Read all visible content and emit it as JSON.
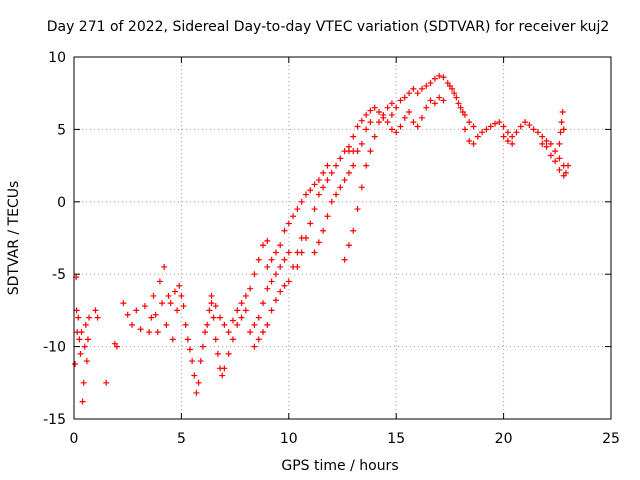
{
  "chart_data": {
    "type": "scatter",
    "title": "Day 271 of 2022, Sidereal Day-to-day VTEC variation (SDTVAR) for receiver kuj2",
    "xlabel": "GPS time / hours",
    "ylabel": "SDTVAR / TECUs",
    "xlim": [
      0,
      25
    ],
    "ylim": [
      -15,
      10
    ],
    "xticks": [
      "0",
      "5",
      "10",
      "15",
      "20",
      "25"
    ],
    "yticks": [
      "-15",
      "-10",
      "-5",
      "0",
      "5",
      "10"
    ],
    "grid": true,
    "marker": "plus",
    "series": [
      {
        "name": "SDTVAR",
        "color": "#ff0000",
        "points": [
          [
            0.05,
            -11.2
          ],
          [
            0.1,
            -5.2
          ],
          [
            0.12,
            -7.5
          ],
          [
            0.15,
            -9.0
          ],
          [
            0.2,
            -8.0
          ],
          [
            0.25,
            -9.5
          ],
          [
            0.3,
            -10.5
          ],
          [
            0.35,
            -9.0
          ],
          [
            0.4,
            -13.8
          ],
          [
            0.45,
            -12.5
          ],
          [
            0.5,
            -10.0
          ],
          [
            0.55,
            -8.5
          ],
          [
            0.6,
            -11.0
          ],
          [
            0.65,
            -9.5
          ],
          [
            0.7,
            -8.0
          ],
          [
            1.0,
            -7.5
          ],
          [
            1.1,
            -8.0
          ],
          [
            1.5,
            -12.5
          ],
          [
            1.9,
            -9.8
          ],
          [
            2.0,
            -10.0
          ],
          [
            2.3,
            -7.0
          ],
          [
            2.5,
            -7.8
          ],
          [
            2.7,
            -8.5
          ],
          [
            2.9,
            -7.5
          ],
          [
            3.1,
            -8.8
          ],
          [
            3.3,
            -7.2
          ],
          [
            3.5,
            -9.0
          ],
          [
            3.6,
            -8.0
          ],
          [
            3.7,
            -6.5
          ],
          [
            3.8,
            -7.8
          ],
          [
            3.9,
            -9.0
          ],
          [
            4.0,
            -5.5
          ],
          [
            4.1,
            -7.0
          ],
          [
            4.2,
            -4.5
          ],
          [
            4.3,
            -8.5
          ],
          [
            4.4,
            -6.5
          ],
          [
            4.5,
            -7.0
          ],
          [
            4.6,
            -9.5
          ],
          [
            4.7,
            -6.2
          ],
          [
            4.8,
            -7.5
          ],
          [
            4.9,
            -5.8
          ],
          [
            5.0,
            -6.5
          ],
          [
            5.1,
            -7.2
          ],
          [
            5.2,
            -8.5
          ],
          [
            5.3,
            -9.5
          ],
          [
            5.4,
            -10.2
          ],
          [
            5.5,
            -11.0
          ],
          [
            5.6,
            -12.0
          ],
          [
            5.7,
            -13.2
          ],
          [
            5.8,
            -12.5
          ],
          [
            5.9,
            -11.0
          ],
          [
            6.0,
            -10.0
          ],
          [
            6.1,
            -9.0
          ],
          [
            6.2,
            -8.5
          ],
          [
            6.3,
            -7.5
          ],
          [
            6.4,
            -7.0
          ],
          [
            6.5,
            -8.0
          ],
          [
            6.6,
            -9.5
          ],
          [
            6.7,
            -10.5
          ],
          [
            6.8,
            -11.5
          ],
          [
            6.9,
            -12.0
          ],
          [
            7.0,
            -11.5
          ],
          [
            7.2,
            -10.5
          ],
          [
            7.4,
            -9.5
          ],
          [
            7.6,
            -8.5
          ],
          [
            7.8,
            -8.0
          ],
          [
            6.4,
            -6.5
          ],
          [
            6.6,
            -7.2
          ],
          [
            6.8,
            -8.0
          ],
          [
            7.0,
            -8.5
          ],
          [
            7.2,
            -9.0
          ],
          [
            7.4,
            -8.2
          ],
          [
            7.6,
            -7.5
          ],
          [
            7.8,
            -7.0
          ],
          [
            8.0,
            -6.5
          ],
          [
            8.0,
            -7.5
          ],
          [
            8.2,
            -6.0
          ],
          [
            8.4,
            -5.0
          ],
          [
            8.6,
            -4.0
          ],
          [
            8.8,
            -3.0
          ],
          [
            9.0,
            -2.7
          ],
          [
            8.2,
            -9.0
          ],
          [
            8.4,
            -8.5
          ],
          [
            8.6,
            -8.0
          ],
          [
            8.8,
            -7.0
          ],
          [
            9.0,
            -6.0
          ],
          [
            9.2,
            -5.5
          ],
          [
            9.4,
            -5.0
          ],
          [
            9.6,
            -4.5
          ],
          [
            9.8,
            -4.0
          ],
          [
            10.0,
            -3.5
          ],
          [
            8.4,
            -10.0
          ],
          [
            8.6,
            -9.5
          ],
          [
            8.8,
            -9.0
          ],
          [
            9.0,
            -8.5
          ],
          [
            9.2,
            -7.5
          ],
          [
            9.4,
            -6.8
          ],
          [
            9.6,
            -6.2
          ],
          [
            9.8,
            -5.8
          ],
          [
            10.0,
            -5.5
          ],
          [
            10.2,
            -4.5
          ],
          [
            10.4,
            -3.5
          ],
          [
            10.6,
            -2.5
          ],
          [
            9.0,
            -4.5
          ],
          [
            9.2,
            -4.0
          ],
          [
            9.4,
            -3.5
          ],
          [
            9.6,
            -3.0
          ],
          [
            9.8,
            -2.0
          ],
          [
            10.0,
            -1.5
          ],
          [
            10.2,
            -1.0
          ],
          [
            10.4,
            -0.5
          ],
          [
            10.6,
            0.0
          ],
          [
            10.8,
            0.5
          ],
          [
            11.0,
            0.8
          ],
          [
            11.2,
            1.2
          ],
          [
            11.4,
            1.5
          ],
          [
            11.6,
            2.0
          ],
          [
            11.8,
            2.5
          ],
          [
            10.4,
            -4.5
          ],
          [
            10.6,
            -3.5
          ],
          [
            10.8,
            -2.5
          ],
          [
            11.0,
            -1.5
          ],
          [
            11.2,
            -0.5
          ],
          [
            11.4,
            0.5
          ],
          [
            11.6,
            1.0
          ],
          [
            11.8,
            1.5
          ],
          [
            12.0,
            2.0
          ],
          [
            12.2,
            2.5
          ],
          [
            12.4,
            3.0
          ],
          [
            12.6,
            3.5
          ],
          [
            12.8,
            3.8
          ],
          [
            13.0,
            3.5
          ],
          [
            11.2,
            -3.5
          ],
          [
            11.4,
            -2.8
          ],
          [
            11.6,
            -2.0
          ],
          [
            11.8,
            -1.0
          ],
          [
            12.0,
            0.0
          ],
          [
            12.2,
            0.5
          ],
          [
            12.4,
            1.0
          ],
          [
            12.6,
            1.5
          ],
          [
            12.8,
            2.0
          ],
          [
            13.0,
            2.5
          ],
          [
            13.2,
            3.5
          ],
          [
            13.4,
            4.0
          ],
          [
            13.6,
            5.0
          ],
          [
            13.8,
            5.5
          ],
          [
            12.6,
            -4.0
          ],
          [
            12.8,
            -3.0
          ],
          [
            13.0,
            -2.0
          ],
          [
            13.2,
            -0.5
          ],
          [
            13.4,
            1.0
          ],
          [
            13.6,
            2.5
          ],
          [
            13.8,
            3.5
          ],
          [
            14.0,
            4.5
          ],
          [
            14.2,
            5.5
          ],
          [
            14.4,
            6.0
          ],
          [
            14.6,
            6.5
          ],
          [
            14.8,
            6.8
          ],
          [
            12.8,
            3.5
          ],
          [
            13.0,
            4.5
          ],
          [
            13.2,
            5.2
          ],
          [
            13.4,
            5.6
          ],
          [
            13.6,
            6.0
          ],
          [
            13.8,
            6.3
          ],
          [
            14.0,
            6.5
          ],
          [
            14.2,
            6.2
          ],
          [
            14.4,
            5.8
          ],
          [
            14.6,
            5.5
          ],
          [
            14.8,
            5.0
          ],
          [
            15.0,
            4.8
          ],
          [
            15.2,
            5.2
          ],
          [
            15.4,
            5.8
          ],
          [
            15.6,
            6.2
          ],
          [
            15.8,
            5.5
          ],
          [
            16.0,
            5.2
          ],
          [
            16.2,
            5.8
          ],
          [
            16.4,
            6.5
          ],
          [
            16.6,
            7.0
          ],
          [
            16.8,
            6.8
          ],
          [
            17.0,
            7.2
          ],
          [
            17.2,
            7.0
          ],
          [
            14.8,
            6.0
          ],
          [
            15.0,
            6.5
          ],
          [
            15.2,
            7.0
          ],
          [
            15.4,
            7.2
          ],
          [
            15.6,
            7.5
          ],
          [
            15.8,
            7.8
          ],
          [
            16.0,
            7.5
          ],
          [
            16.2,
            7.8
          ],
          [
            16.4,
            8.0
          ],
          [
            16.6,
            8.2
          ],
          [
            16.8,
            8.5
          ],
          [
            17.0,
            8.7
          ],
          [
            17.2,
            8.6
          ],
          [
            17.4,
            8.2
          ],
          [
            17.6,
            7.8
          ],
          [
            17.8,
            7.2
          ],
          [
            18.0,
            6.5
          ],
          [
            18.2,
            6.0
          ],
          [
            18.4,
            5.5
          ],
          [
            18.6,
            5.2
          ],
          [
            17.5,
            8.0
          ],
          [
            17.7,
            7.5
          ],
          [
            17.9,
            6.8
          ],
          [
            18.1,
            6.2
          ],
          [
            18.2,
            5.0
          ],
          [
            18.4,
            4.2
          ],
          [
            18.6,
            4.0
          ],
          [
            18.8,
            4.5
          ],
          [
            19.0,
            4.8
          ],
          [
            19.2,
            5.0
          ],
          [
            19.4,
            5.2
          ],
          [
            19.6,
            5.4
          ],
          [
            19.8,
            5.5
          ],
          [
            20.0,
            5.2
          ],
          [
            20.2,
            4.8
          ],
          [
            20.4,
            4.5
          ],
          [
            20.6,
            4.8
          ],
          [
            20.8,
            5.2
          ],
          [
            21.0,
            5.5
          ],
          [
            21.2,
            5.3
          ],
          [
            21.4,
            5.0
          ],
          [
            21.6,
            4.8
          ],
          [
            21.8,
            4.5
          ],
          [
            22.0,
            4.2
          ],
          [
            22.2,
            4.0
          ],
          [
            22.4,
            3.5
          ],
          [
            22.6,
            3.0
          ],
          [
            22.8,
            2.5
          ],
          [
            22.9,
            2.0
          ],
          [
            23.0,
            2.5
          ],
          [
            20.0,
            4.5
          ],
          [
            20.2,
            4.2
          ],
          [
            20.4,
            4.0
          ],
          [
            21.8,
            4.0
          ],
          [
            22.0,
            3.8
          ],
          [
            22.2,
            3.2
          ],
          [
            22.4,
            2.8
          ],
          [
            22.6,
            2.2
          ],
          [
            22.8,
            1.8
          ],
          [
            22.6,
            4.0
          ],
          [
            22.65,
            4.8
          ],
          [
            22.7,
            5.5
          ],
          [
            22.75,
            6.2
          ],
          [
            22.8,
            5.0
          ]
        ]
      }
    ]
  }
}
